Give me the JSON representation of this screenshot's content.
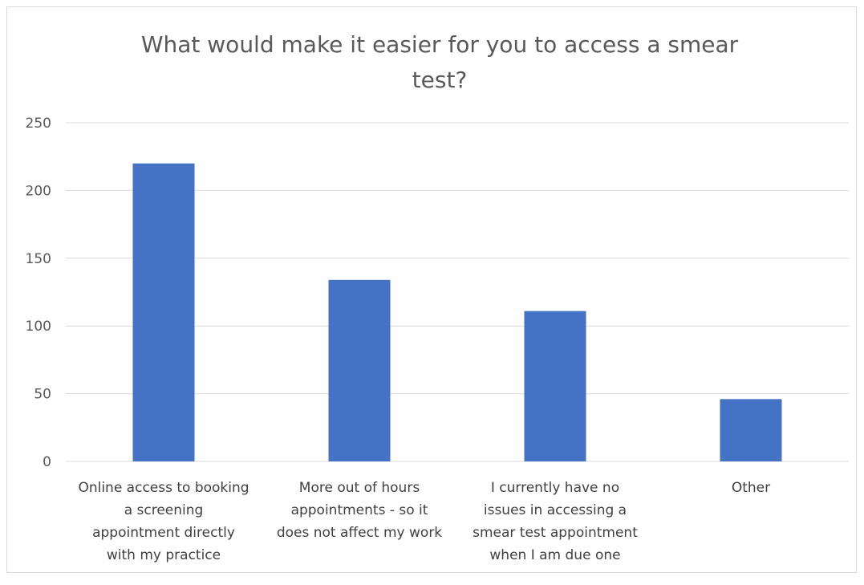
{
  "chart_data": {
    "type": "bar",
    "title_lines": [
      "What would make it easier for you to access a smear",
      "test?"
    ],
    "categories": [
      [
        "Online access to booking",
        "a screening",
        "appointment directly",
        "with my practice"
      ],
      [
        "More out of hours",
        "appointments - so it",
        "does not affect my work"
      ],
      [
        "I currently have no",
        "issues in accessing a",
        "smear test appointment",
        "when I am due one"
      ],
      [
        "Other"
      ]
    ],
    "values": [
      220,
      134,
      111,
      46
    ],
    "ylim": [
      0,
      250
    ],
    "yticks": [
      0,
      50,
      100,
      150,
      200,
      250
    ],
    "grid": true,
    "legend": "none",
    "bar_color": "#4472C4",
    "grid_color": "#d9d9d9"
  }
}
